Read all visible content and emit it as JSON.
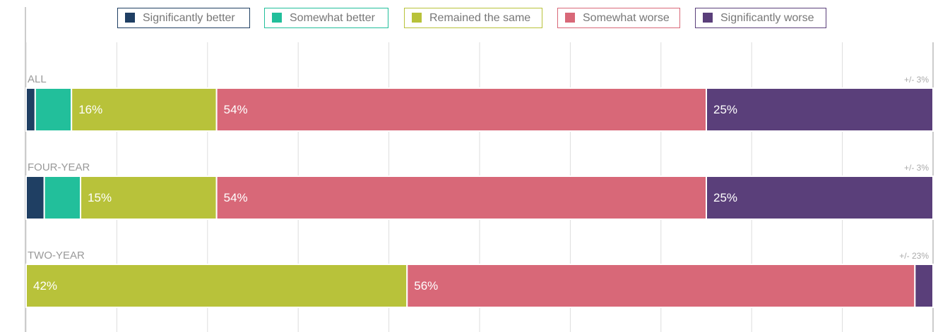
{
  "chart_data": {
    "type": "stacked-bar-horizontal",
    "categories": [
      "ALL",
      "FOUR-YEAR",
      "TWO-YEAR"
    ],
    "annotations": [
      "+/- 3%",
      "+/- 3%",
      "+/- 23%"
    ],
    "series": [
      {
        "name": "Significantly better",
        "color": "#1f3f63",
        "values": [
          1,
          2,
          0
        ],
        "value_labels": [
          null,
          null,
          null
        ]
      },
      {
        "name": "Somewhat better",
        "color": "#22bf9b",
        "values": [
          4,
          4,
          0
        ],
        "value_labels": [
          null,
          null,
          null
        ]
      },
      {
        "name": "Remained the same",
        "color": "#b8c23a",
        "values": [
          16,
          15,
          42
        ],
        "value_labels": [
          "16%",
          "15%",
          "42%"
        ]
      },
      {
        "name": "Somewhat worse",
        "color": "#d86878",
        "values": [
          54,
          54,
          56
        ],
        "value_labels": [
          "54%",
          "54%",
          "56%"
        ]
      },
      {
        "name": "Significantly worse",
        "color": "#5a3f7a",
        "values": [
          25,
          25,
          2
        ],
        "value_labels": [
          "25%",
          "25%",
          null
        ]
      }
    ],
    "xlim": [
      0,
      100
    ],
    "xticks": [
      0,
      10,
      20,
      30,
      40,
      50,
      60,
      70,
      80,
      90,
      100
    ],
    "grid": true
  }
}
